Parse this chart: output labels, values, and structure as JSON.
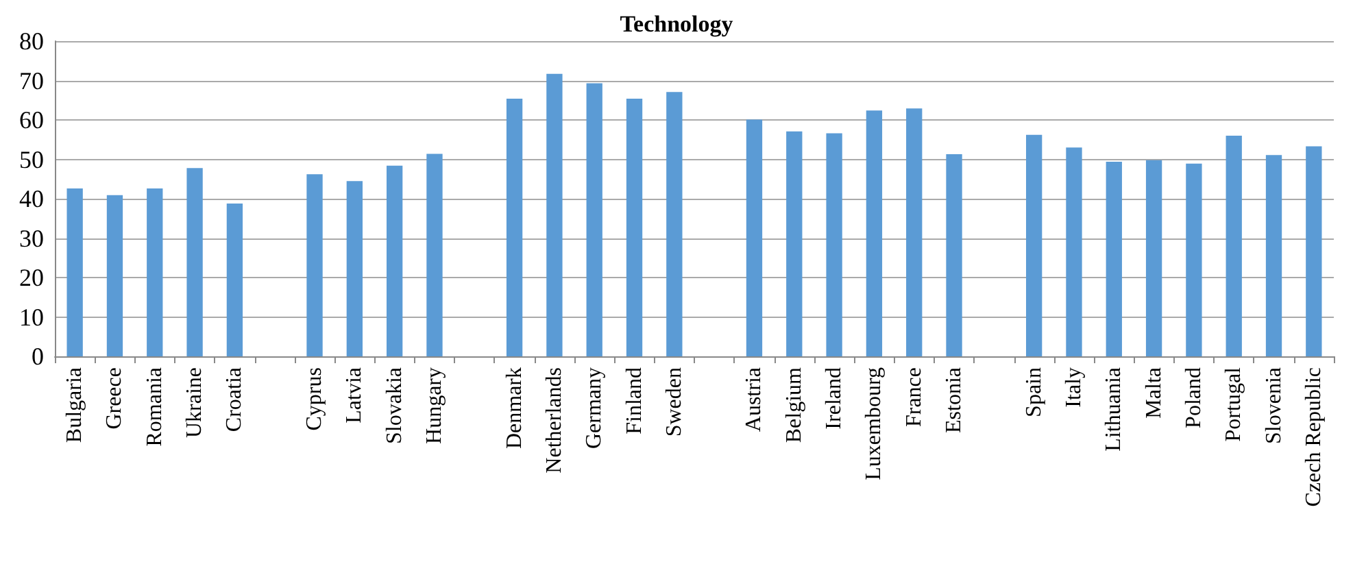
{
  "chart_data": {
    "type": "bar",
    "title": "Technology",
    "categories": [
      "Bulgaria",
      "Greece",
      "Romania",
      "Ukraine",
      "Croatia",
      null,
      "Cyprus",
      "Latvia",
      "Slovakia",
      "Hungary",
      null,
      "Denmark",
      "Netherlands",
      "Germany",
      "Finland",
      "Sweden",
      null,
      "Austria",
      "Belgium",
      "Ireland",
      "Luxembourg",
      "France",
      "Estonia",
      null,
      "Spain",
      "Italy",
      "Lithuania",
      "Malta",
      "Poland",
      "Portugal",
      "Slovenia",
      "Czech Republic"
    ],
    "values": [
      42.6,
      40.9,
      42.6,
      47.8,
      38.8,
      null,
      46.2,
      44.5,
      48.4,
      51.4,
      null,
      65.4,
      71.7,
      69.3,
      65.4,
      67.1,
      null,
      60.1,
      57.1,
      56.6,
      62.4,
      62.9,
      51.3,
      null,
      56.2,
      53.0,
      49.4,
      49.8,
      48.9,
      56.0,
      51.1,
      53.3
    ],
    "color": "#5b9bd5",
    "ylim": [
      0,
      80
    ],
    "yticks": [
      0,
      10,
      20,
      30,
      40,
      50,
      60,
      70,
      80
    ],
    "grid": "y"
  }
}
